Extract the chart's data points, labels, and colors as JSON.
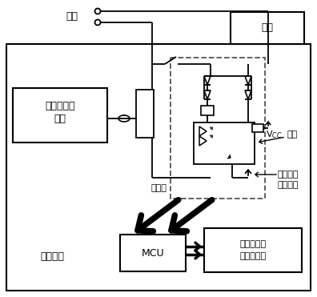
{
  "bg_color": "#ffffff",
  "lc": "#000000",
  "dc": "#555555",
  "labels": {
    "power": "电源",
    "load": "负载",
    "relay_ctrl1": "继电器控制",
    "relay_ctrl2": "电路",
    "relay": "继电器",
    "opto": "光耦",
    "feedback1": "负载状态",
    "feedback2": "反馈电路",
    "monitor": "监控装置",
    "mcu": "MCU",
    "display1": "负载状态显",
    "display2": "示、告警等"
  },
  "fs": 9,
  "fs_s": 8
}
